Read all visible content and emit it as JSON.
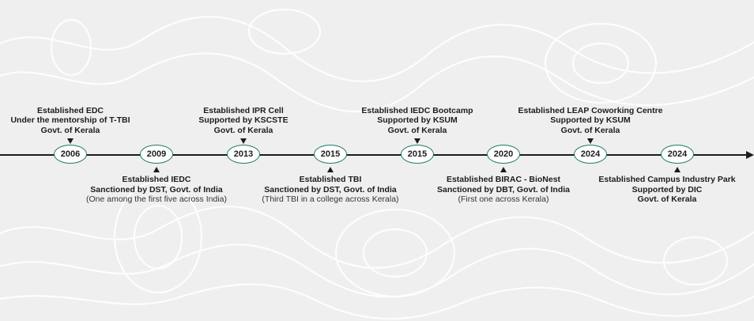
{
  "timeline": {
    "events": [
      {
        "year": "2006",
        "lines": [
          "Established EDC",
          "Under the mentorship of T-TBI",
          "Govt. of Kerala"
        ],
        "note": ""
      },
      {
        "year": "2009",
        "lines": [
          "Established IEDC",
          "Sanctioned by DST, Govt. of India"
        ],
        "note": "(One among the first five across India)"
      },
      {
        "year": "2013",
        "lines": [
          "Established IPR Cell",
          "Supported by KSCSTE",
          "Govt. of Kerala"
        ],
        "note": ""
      },
      {
        "year": "2015",
        "lines": [
          "Established TBI",
          "Sanctioned by DST, Govt. of India"
        ],
        "note": "(Third TBI in a college across Kerala)"
      },
      {
        "year": "2015",
        "lines": [
          "Established IEDC Bootcamp",
          "Supported by KSUM",
          "Govt. of Kerala"
        ],
        "note": ""
      },
      {
        "year": "2020",
        "lines": [
          "Established BIRAC - BioNest",
          "Sanctioned by DBT, Govt. of India"
        ],
        "note": "(First one across Kerala)"
      },
      {
        "year": "2024",
        "lines": [
          "Established LEAP Coworking Centre",
          "Supported by KSUM",
          "Govt. of Kerala"
        ],
        "note": ""
      },
      {
        "year": "2024",
        "lines": [
          "Established Campus Industry Park",
          "Supported by DIC",
          "Govt. of Kerala"
        ],
        "note": ""
      }
    ]
  },
  "colors": {
    "node_border": "#1f7a6b",
    "axis": "#1c1c1c",
    "background": "#efefef"
  }
}
